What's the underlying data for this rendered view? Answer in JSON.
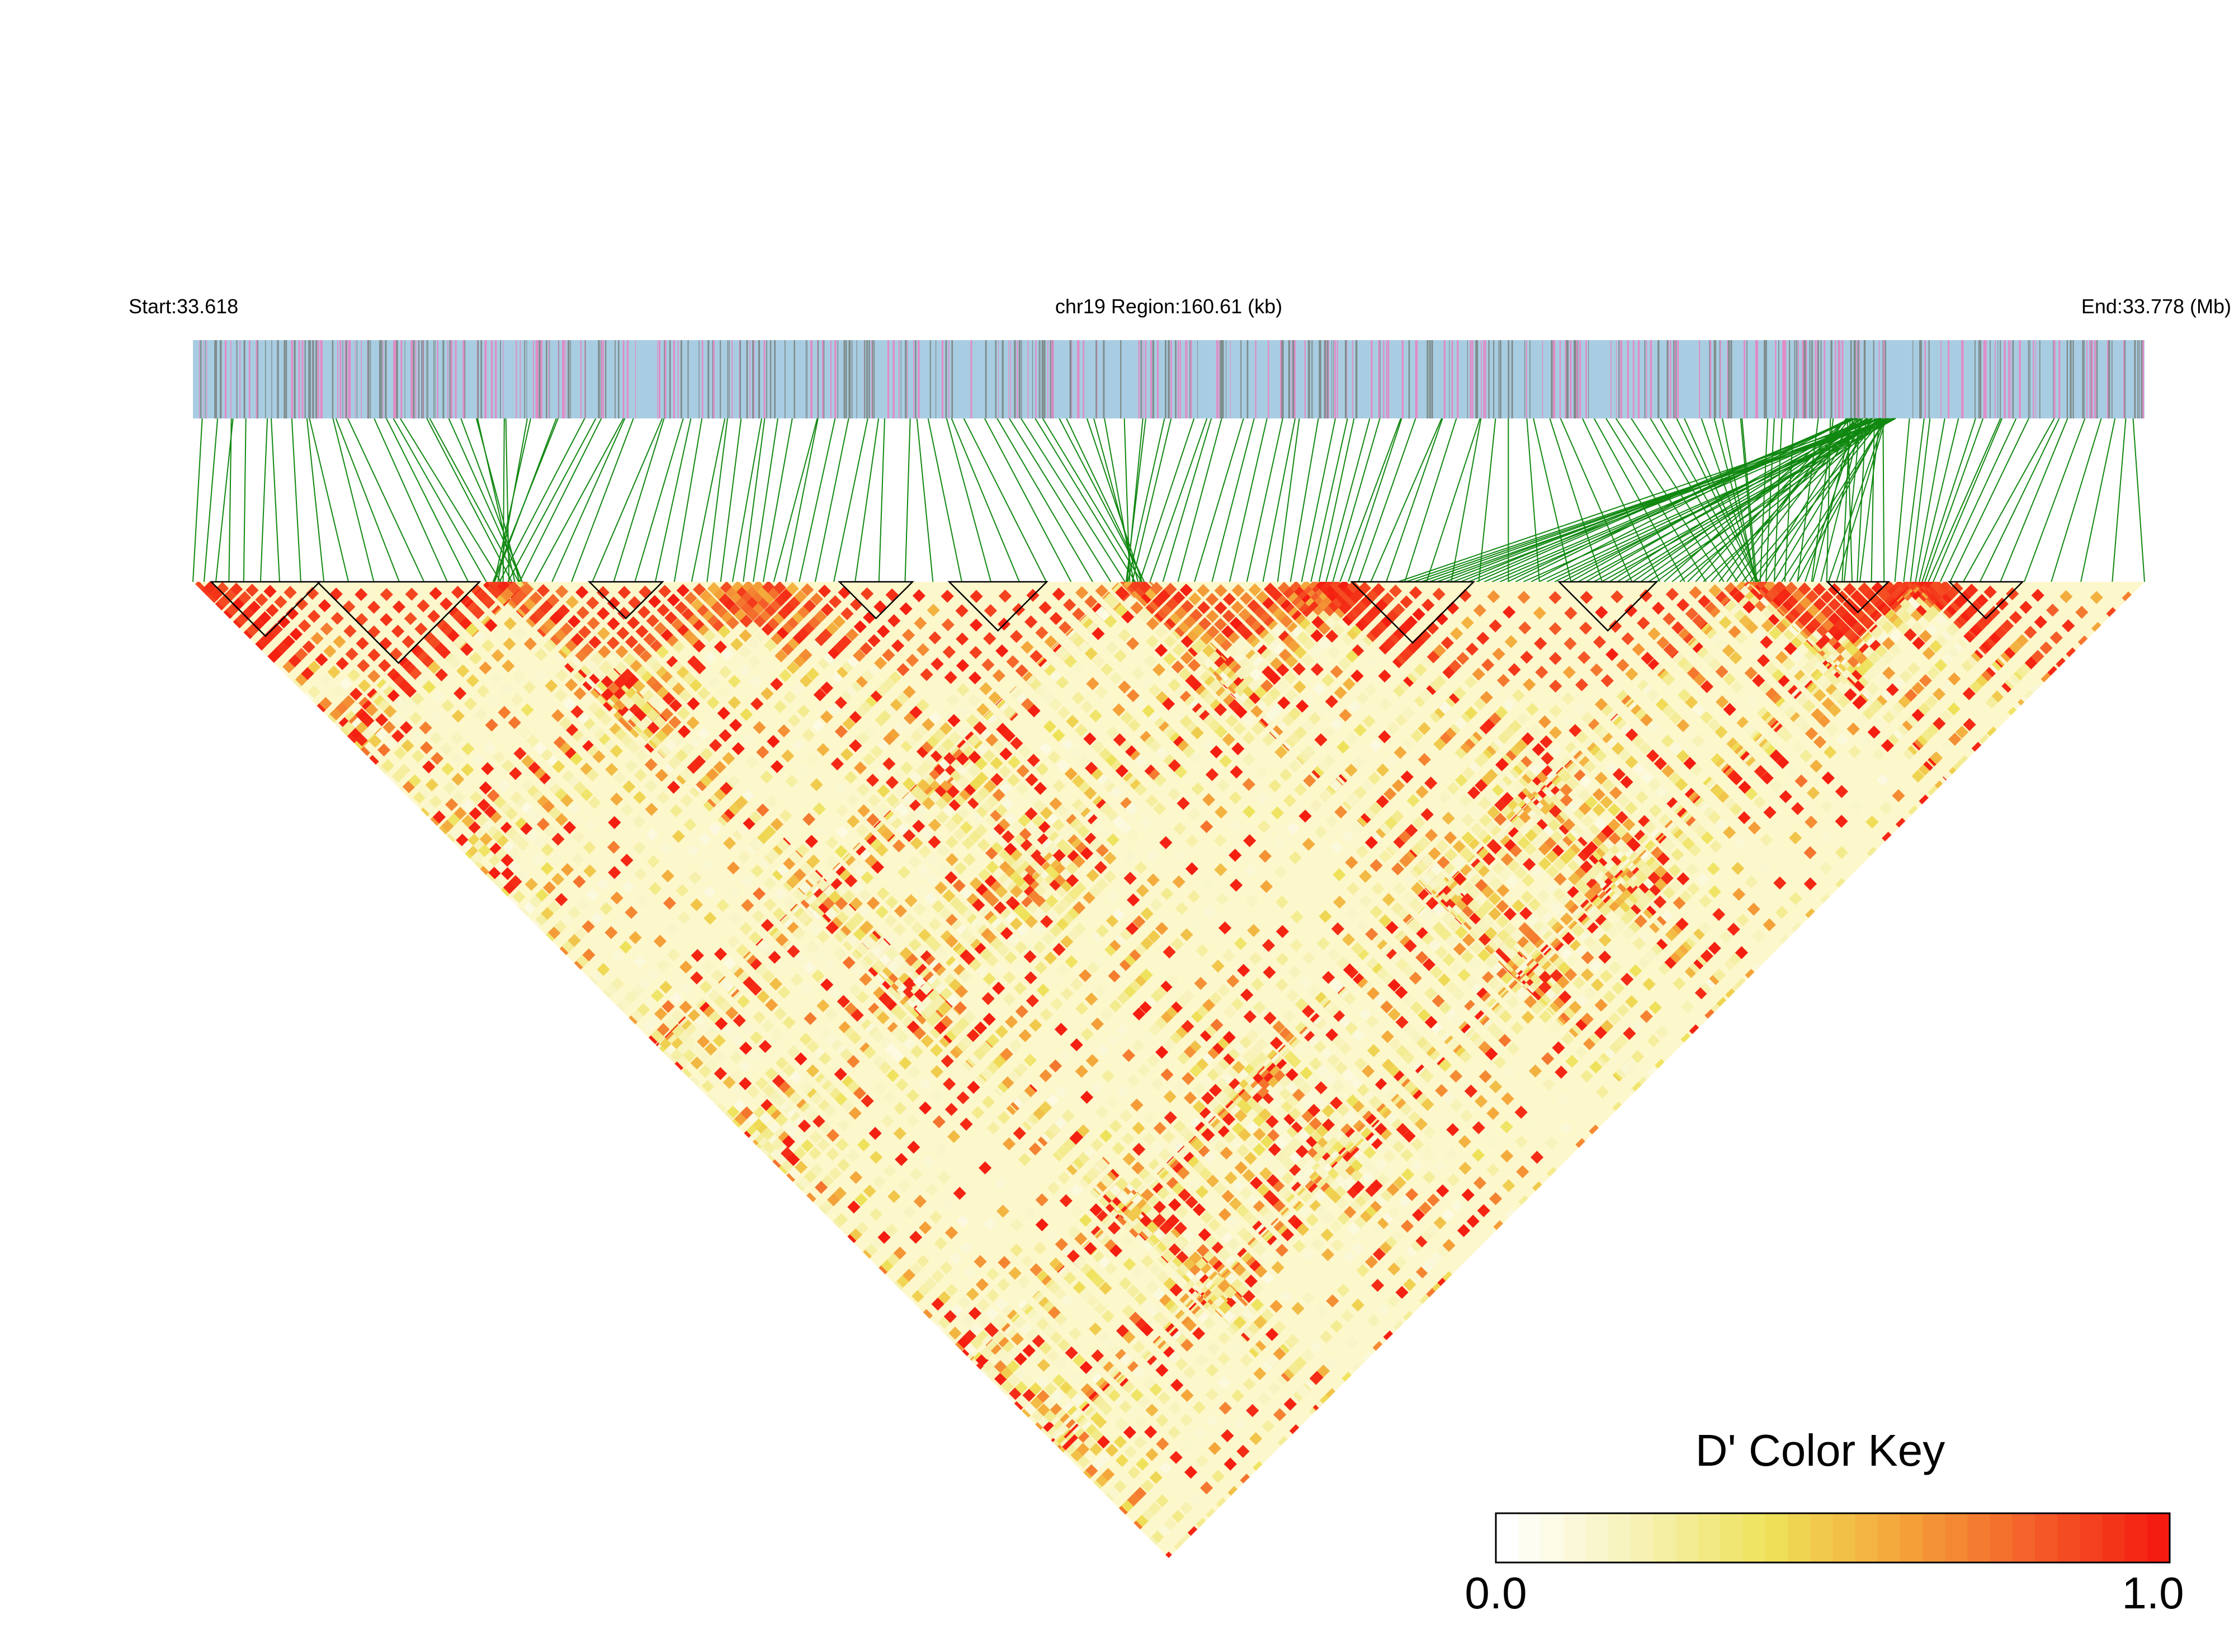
{
  "chart_data": {
    "type": "heatmap",
    "description_free": true,
    "header": {
      "start_label": "Start:33.618",
      "region_label": "chr19 Region:160.61 (kb)",
      "end_label": "End:33.778 (Mb)"
    },
    "region": {
      "chromosome": "chr19",
      "start_mb": 33.618,
      "end_mb": 33.778,
      "length_kb": 160.61
    },
    "color_key": {
      "title": "D' Color Key",
      "min_label": "0.0",
      "max_label": "1.0",
      "min": 0.0,
      "max": 1.0,
      "stops": [
        "#ffffff",
        "#f7f2b6",
        "#eee25a",
        "#f4a63a",
        "#f4622a",
        "#f41c10"
      ]
    },
    "colors": {
      "track_background": "#a8cde2",
      "snp_tick_gray": "#7f8c8c",
      "snp_tick_pink": "#e08cc6",
      "connector_green": "#118811",
      "high_ld": "#ff2200",
      "block_outline": "#000000"
    },
    "ld_blocks_mb": [
      [
        33.6195,
        33.6284
      ],
      [
        33.6282,
        33.6415
      ],
      [
        33.6505,
        33.6565
      ],
      [
        33.671,
        33.677
      ],
      [
        33.68,
        33.688
      ],
      [
        33.713,
        33.723
      ],
      [
        33.73,
        33.738
      ],
      [
        33.752,
        33.757
      ],
      [
        33.762,
        33.768
      ]
    ]
  }
}
